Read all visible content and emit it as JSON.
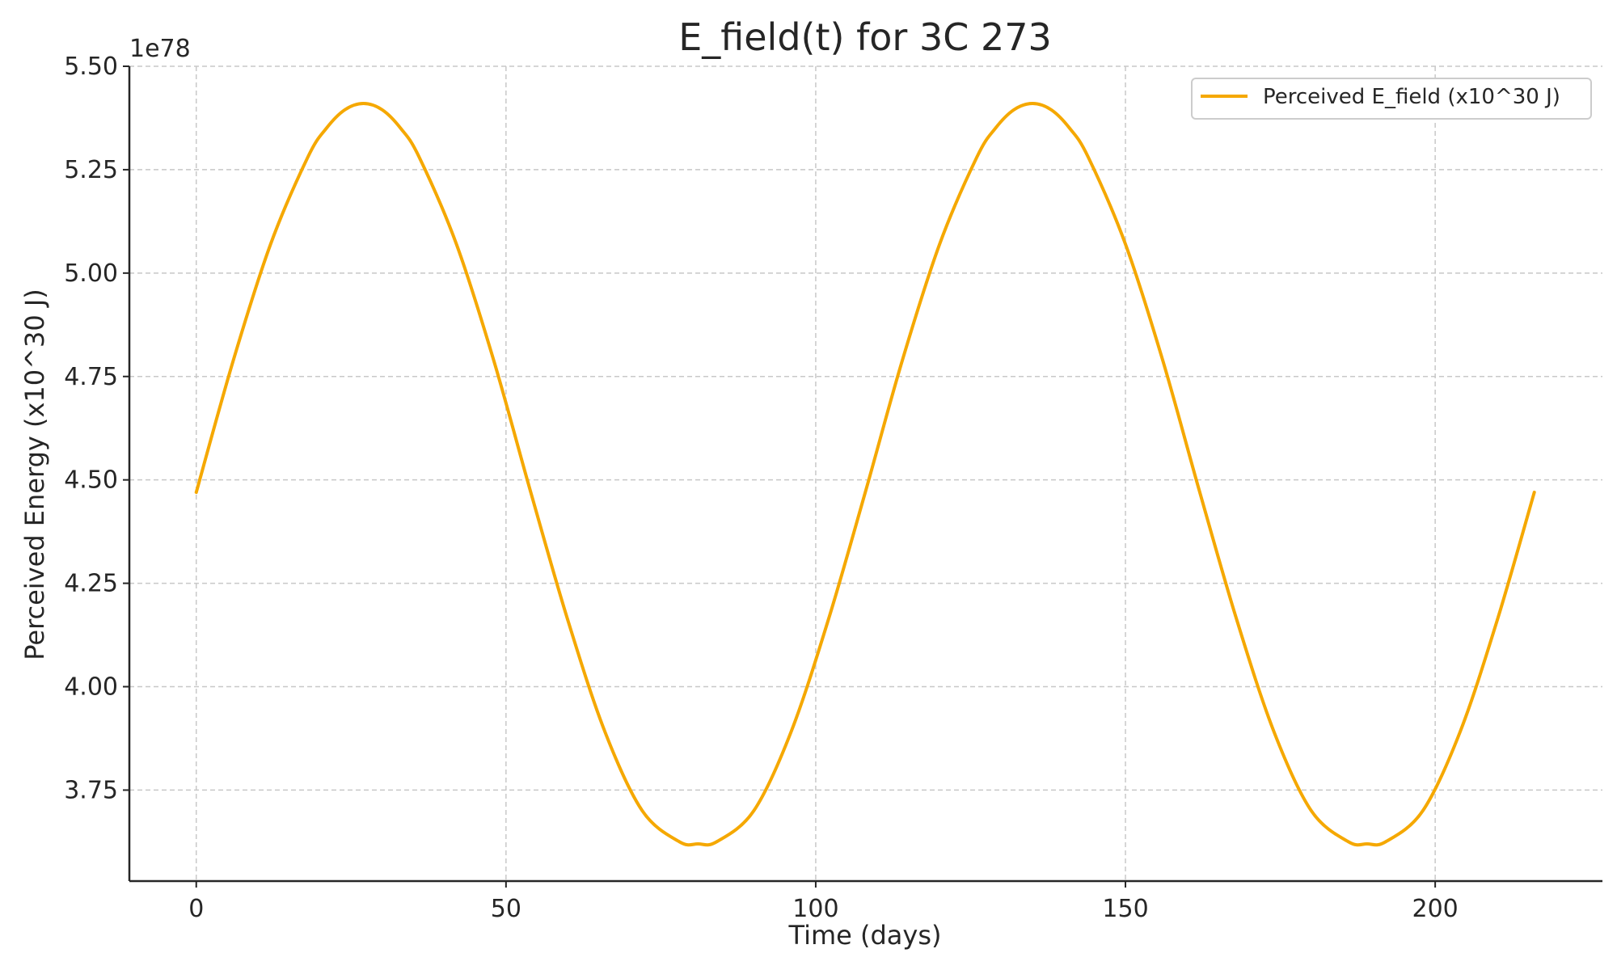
{
  "chart_data": {
    "type": "line",
    "title": "E_field(t) for 3C 273",
    "xlabel": "Time (days)",
    "ylabel": "Perceived Energy (x10^30 J)",
    "offset_text": "1e78",
    "xlim": [
      -10.8,
      227
    ],
    "ylim": [
      3.53,
      5.5
    ],
    "y_scale_multiplier": 1e+78,
    "grid": true,
    "legend_position": "top-right",
    "x_ticks": [
      {
        "value": 0,
        "label": "0"
      },
      {
        "value": 50,
        "label": "50"
      },
      {
        "value": 100,
        "label": "100"
      },
      {
        "value": 150,
        "label": "150"
      },
      {
        "value": 200,
        "label": "200"
      }
    ],
    "y_ticks": [
      {
        "value": 3.75,
        "label": "3.75"
      },
      {
        "value": 4.0,
        "label": "4.00"
      },
      {
        "value": 4.25,
        "label": "4.25"
      },
      {
        "value": 4.5,
        "label": "4.50"
      },
      {
        "value": 4.75,
        "label": "4.75"
      },
      {
        "value": 5.0,
        "label": "5.00"
      },
      {
        "value": 5.25,
        "label": "5.25"
      },
      {
        "value": 5.5,
        "label": "5.50"
      }
    ],
    "series": [
      {
        "name": "Perceived E_field (x10^30 J)",
        "color": "#f5a800",
        "x": [
          0,
          6,
          12,
          18,
          21,
          24,
          27,
          30,
          33,
          36,
          42,
          48,
          54,
          60,
          66,
          72,
          78,
          81,
          84,
          90,
          96,
          102,
          108,
          114,
          120,
          126,
          129,
          132,
          135,
          138,
          141,
          144,
          150,
          156,
          162,
          168,
          174,
          180,
          186,
          189,
          192,
          198,
          204,
          210,
          216
        ],
        "y": [
          4.47,
          4.79,
          5.07,
          5.28,
          5.35,
          5.395,
          5.41,
          5.395,
          5.35,
          5.28,
          5.07,
          4.79,
          4.47,
          4.16,
          3.89,
          3.7,
          3.625,
          3.62,
          3.625,
          3.7,
          3.89,
          4.16,
          4.47,
          4.79,
          5.07,
          5.28,
          5.35,
          5.395,
          5.41,
          5.395,
          5.35,
          5.28,
          5.07,
          4.79,
          4.47,
          4.16,
          3.89,
          3.7,
          3.625,
          3.62,
          3.625,
          3.7,
          3.89,
          4.16,
          4.47
        ]
      }
    ]
  }
}
